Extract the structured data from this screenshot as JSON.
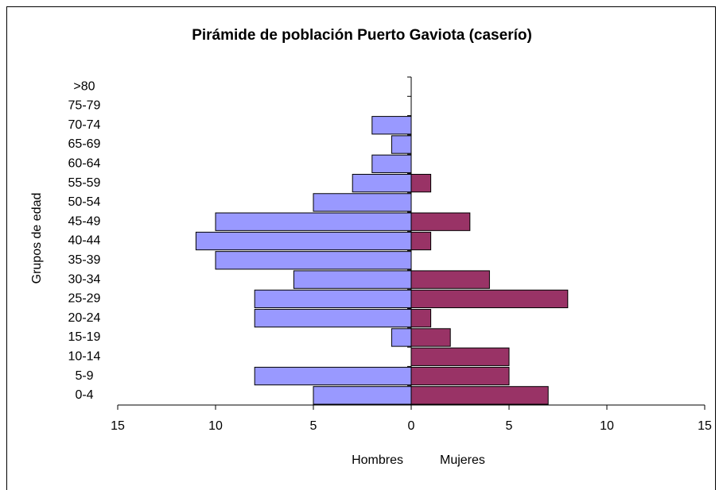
{
  "chart_data": {
    "type": "pyramid",
    "title": "Pirámide de población Puerto Gaviota (caserío)",
    "y_label": "Grupos de edad",
    "categories": [
      ">80",
      "75-79",
      "70-74",
      "65-69",
      "60-64",
      "55-59",
      "50-54",
      "45-49",
      "40-44",
      "35-39",
      "30-34",
      "25-29",
      "20-24",
      "15-19",
      "10-14",
      "5-9",
      "0-4"
    ],
    "series": [
      {
        "name": "Hombres",
        "color": "#9999ff",
        "values": [
          0,
          0,
          -2,
          -1,
          -2,
          -3,
          -5,
          -10,
          -11,
          -10,
          -6,
          -8,
          -8,
          -1,
          0,
          -8,
          -5
        ]
      },
      {
        "name": "Mujeres",
        "color": "#993366",
        "values": [
          0,
          0,
          0,
          0,
          0,
          1,
          0,
          3,
          1,
          0,
          4,
          8,
          1,
          2,
          5,
          5,
          7
        ]
      }
    ],
    "xlim": [
      -15,
      15
    ],
    "xticks": [
      {
        "value": -15,
        "label": "15"
      },
      {
        "value": -10,
        "label": "10"
      },
      {
        "value": -5,
        "label": "5"
      },
      0,
      5,
      10,
      15
    ]
  }
}
